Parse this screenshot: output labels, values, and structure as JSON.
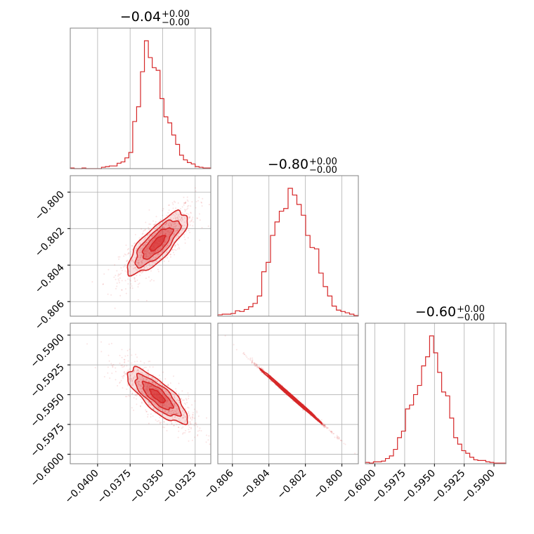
{
  "chart_data": {
    "type": "corner",
    "color": "#d62728",
    "grid": true,
    "params": [
      {
        "title_main": "−0.04",
        "title_plus": "+0.00",
        "title_minus": "−0.00",
        "range": [
          -0.0421,
          -0.0313
        ],
        "mean": -0.0354,
        "std": 0.00115
      },
      {
        "title_main": "−0.80",
        "title_plus": "+0.00",
        "title_minus": "−0.00",
        "range": [
          -0.8068,
          -0.7991
        ],
        "mean": -0.8028,
        "std": 0.00085
      },
      {
        "title_main": "−0.60",
        "title_plus": "+0.00",
        "title_minus": "−0.00",
        "range": [
          -0.6008,
          -0.589
        ],
        "mean": -0.5951,
        "std": 0.00115
      }
    ],
    "ticks": {
      "x0": [
        "−0.0400",
        "−0.0375",
        "−0.0350",
        "−0.0325"
      ],
      "x0_values": [
        -0.04,
        -0.0375,
        -0.035,
        -0.0325
      ],
      "x1": [
        "−0.806",
        "−0.804",
        "−0.802",
        "−0.800"
      ],
      "x1_values": [
        -0.806,
        -0.804,
        -0.802,
        -0.8
      ],
      "x2": [
        "−0.6000",
        "−0.5975",
        "−0.5950",
        "−0.5925",
        "−0.5900"
      ],
      "x2_values": [
        -0.6,
        -0.5975,
        -0.595,
        -0.5925,
        -0.59
      ],
      "y1": [
        "−0.800",
        "−0.802",
        "−0.804",
        "−0.806"
      ],
      "y1_values": [
        -0.8,
        -0.802,
        -0.804,
        -0.806
      ],
      "y2": [
        "−0.5900",
        "−0.5925",
        "−0.5950",
        "−0.5975",
        "−0.6000"
      ],
      "y2_values": [
        -0.59,
        -0.5925,
        -0.595,
        -0.5975,
        -0.6
      ]
    },
    "hist_bin_counts": [
      [
        1,
        0,
        0,
        1,
        0,
        0,
        0,
        0,
        2,
        3,
        4,
        4,
        8,
        10,
        16,
        24,
        70,
        92,
        144,
        190,
        165,
        150,
        146,
        104,
        77,
        68,
        50,
        36,
        20,
        13,
        9,
        7,
        3,
        2,
        1,
        1
      ],
      [
        2,
        3,
        3,
        4,
        8,
        7,
        10,
        14,
        19,
        30,
        66,
        80,
        120,
        140,
        156,
        160,
        190,
        180,
        166,
        150,
        120,
        102,
        100,
        64,
        44,
        30,
        15,
        9,
        7,
        5,
        3,
        1
      ],
      [
        2,
        1,
        3,
        3,
        4,
        8,
        12,
        22,
        40,
        50,
        84,
        90,
        106,
        120,
        150,
        164,
        196,
        170,
        140,
        110,
        104,
        70,
        40,
        30,
        20,
        16,
        10,
        6,
        5,
        5,
        3,
        2,
        1,
        1,
        1
      ]
    ],
    "correlations": {
      "p0_p1": 0.78,
      "p0_p2": -0.78,
      "p1_p2": -0.998
    },
    "contour_levels": [
      0.5,
      1.0,
      1.5,
      2.0
    ]
  }
}
